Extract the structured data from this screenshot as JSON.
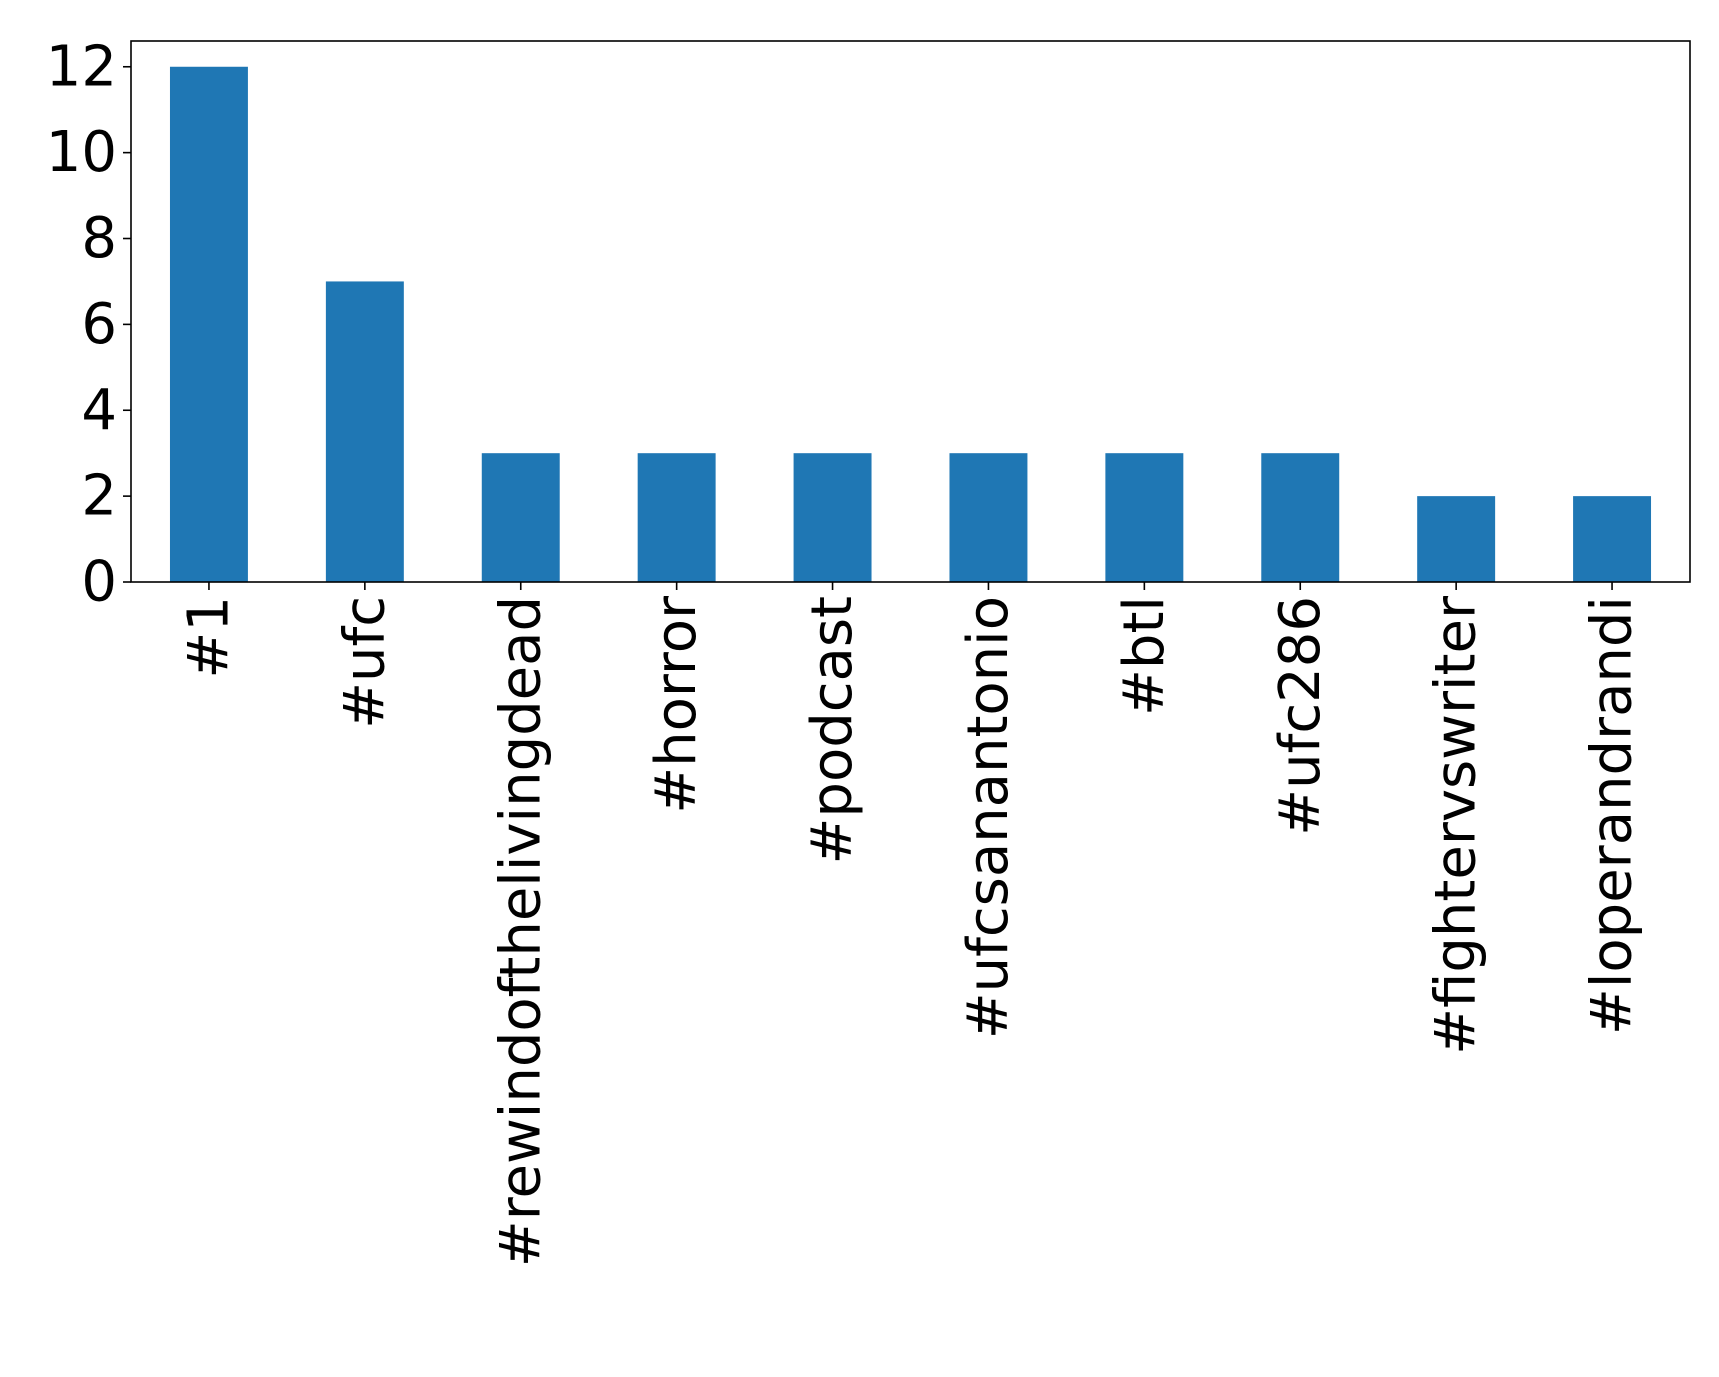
{
  "chart_data": {
    "type": "bar",
    "title": "",
    "xlabel": "",
    "ylabel": "",
    "categories": [
      "#1",
      "#ufc",
      "#rewindofthelivingdead",
      "#horror",
      "#podcast",
      "#ufcsanantonio",
      "#btl",
      "#ufc286",
      "#fightervswriter",
      "#loperandrandi"
    ],
    "values": [
      12,
      7,
      3,
      3,
      3,
      3,
      3,
      3,
      2,
      2
    ],
    "ylim": [
      0,
      12.6
    ],
    "yticks": [
      0,
      2,
      4,
      6,
      8,
      10,
      12
    ],
    "grid": false,
    "legend": "none",
    "x_tick_rotation": "vertical",
    "colors": {
      "bar": "#1f77b4",
      "axes": "#000000",
      "background": "#ffffff"
    }
  }
}
